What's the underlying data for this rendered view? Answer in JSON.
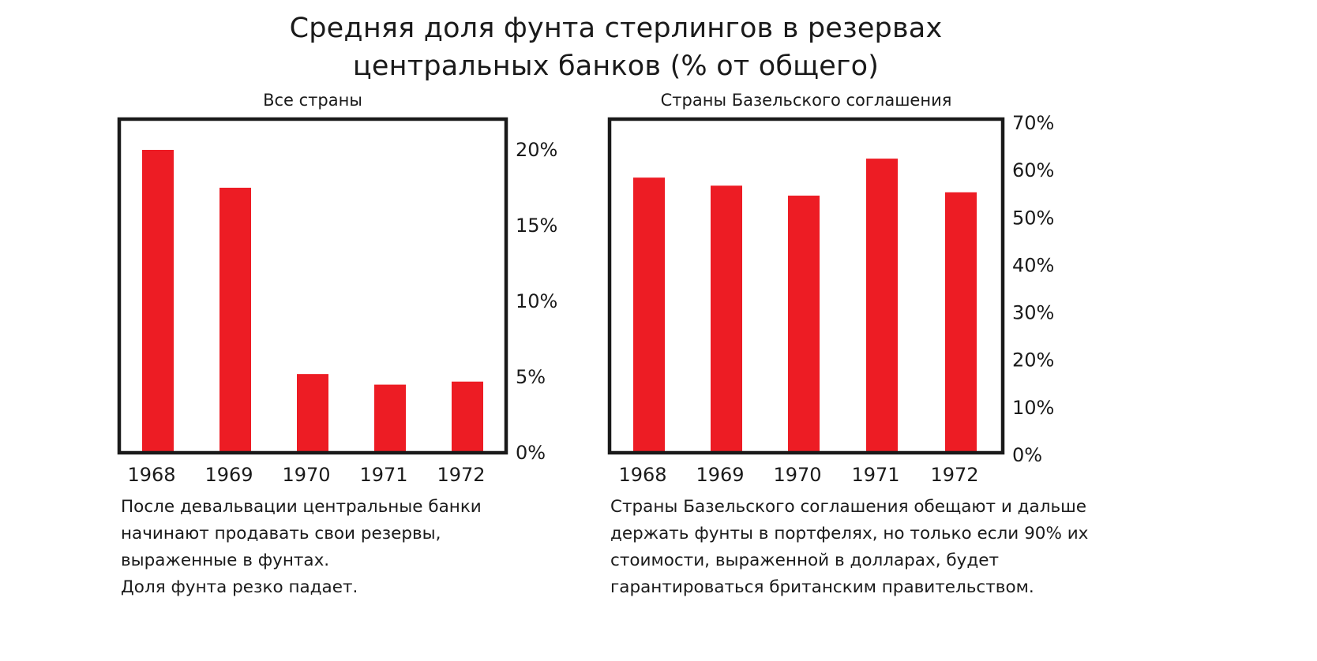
{
  "title": {
    "line1": "Средняя доля фунта стерлингов в резервах",
    "line2": "центральных банков (% от общего)"
  },
  "colors": {
    "bar": "#ED1C24",
    "frame": "#1a1a1a",
    "text": "#1a1a1a"
  },
  "chart_data": [
    {
      "type": "bar",
      "title": "Все страны",
      "categories": [
        "1968",
        "1969",
        "1970",
        "1971",
        "1972"
      ],
      "values": [
        20,
        17.5,
        5.2,
        4.5,
        4.7
      ],
      "ylim": [
        0,
        22
      ],
      "yticks": [
        0,
        5,
        10,
        15,
        20
      ],
      "ytick_labels": [
        "0%",
        "5%",
        "10%",
        "15%",
        "20%"
      ],
      "y_axis_side": "right",
      "grid": false
    },
    {
      "type": "bar",
      "title": "Страны Базельского соглашения",
      "categories": [
        "1968",
        "1969",
        "1970",
        "1971",
        "1972"
      ],
      "values": [
        58.5,
        56.8,
        54.7,
        62.5,
        55.4
      ],
      "ylim": [
        0,
        70
      ],
      "yticks": [
        0,
        10,
        20,
        30,
        40,
        50,
        60,
        70
      ],
      "ytick_labels": [
        "0%",
        "10%",
        "20%",
        "30%",
        "40%",
        "50%",
        "60%",
        "70%"
      ],
      "y_axis_side": "right",
      "grid": false
    }
  ],
  "captions": {
    "left": [
      "После девальвации центральные банки",
      "начинают продавать свои резервы,",
      "выраженные в фунтах.",
      "Доля фунта резко падает."
    ],
    "right": [
      "Страны Базельского соглашения обещают и дальше",
      "держать фунты в портфелях, но только если 90% их",
      "стоимости, выраженной в долларах, будет",
      "гарантироваться британским правительством."
    ]
  }
}
